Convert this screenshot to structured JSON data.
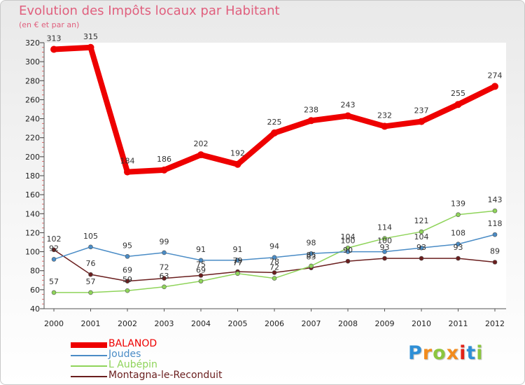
{
  "chart_data": {
    "type": "line",
    "title": "Evolution des Impôts locaux par Habitant",
    "subtitle": "(en € et par an)",
    "categories": [
      "2000",
      "2001",
      "2002",
      "2003",
      "2004",
      "2005",
      "2006",
      "2007",
      "2008",
      "2009",
      "2010",
      "2011",
      "2012"
    ],
    "ylim": [
      40,
      320
    ],
    "yticks": [
      40,
      60,
      80,
      100,
      120,
      140,
      160,
      180,
      200,
      220,
      240,
      260,
      280,
      300,
      320
    ],
    "grid": false,
    "legend_position": "bottom-left",
    "series": [
      {
        "name": "BALANOD",
        "color": "#ee0000",
        "values": [
          313,
          315,
          184,
          186,
          202,
          192,
          225,
          238,
          243,
          232,
          237,
          255,
          274
        ]
      },
      {
        "name": "Joudes",
        "color": "#4a8cc6",
        "values": [
          92,
          105,
          95,
          99,
          91,
          91,
          94,
          98,
          100,
          100,
          104,
          108,
          118
        ]
      },
      {
        "name": "L  Aubépin",
        "color": "#8fd45a",
        "values": [
          57,
          57,
          59,
          63,
          69,
          77,
          72,
          85,
          104,
          114,
          121,
          139,
          143
        ]
      },
      {
        "name": "Montagna-le-Reconduit",
        "color": "#6a1e1e",
        "values": [
          102,
          76,
          69,
          72,
          75,
          79,
          78,
          83,
          90,
          93,
          93,
          93,
          89
        ]
      }
    ],
    "data_labels": [
      [
        "313",
        "315",
        "184",
        "186",
        "202",
        "192",
        "225",
        "238",
        "243",
        "232",
        "237",
        "255",
        "274"
      ],
      [
        "92",
        "105",
        "95",
        "99",
        "91",
        "91",
        "94",
        "98",
        "100",
        "100",
        "104",
        "108",
        "118"
      ],
      [
        "57",
        "57",
        "59",
        "63",
        "69",
        "77",
        "72",
        "85",
        "104",
        "114",
        "121",
        "139",
        "143"
      ],
      [
        "102",
        "76",
        "69",
        "72",
        "75",
        "79",
        "78",
        "83",
        "90",
        "93",
        "93",
        "93",
        "89"
      ]
    ]
  },
  "logo": {
    "text": "Proxiti",
    "letters": [
      "P",
      "r",
      "o",
      "x",
      "i",
      "t",
      "i"
    ],
    "colors": [
      "#2f8fd6",
      "#f28c1e",
      "#8cc63f",
      "#f28c1e",
      "#e2231a",
      "#2f8fd6",
      "#8cc63f"
    ]
  }
}
